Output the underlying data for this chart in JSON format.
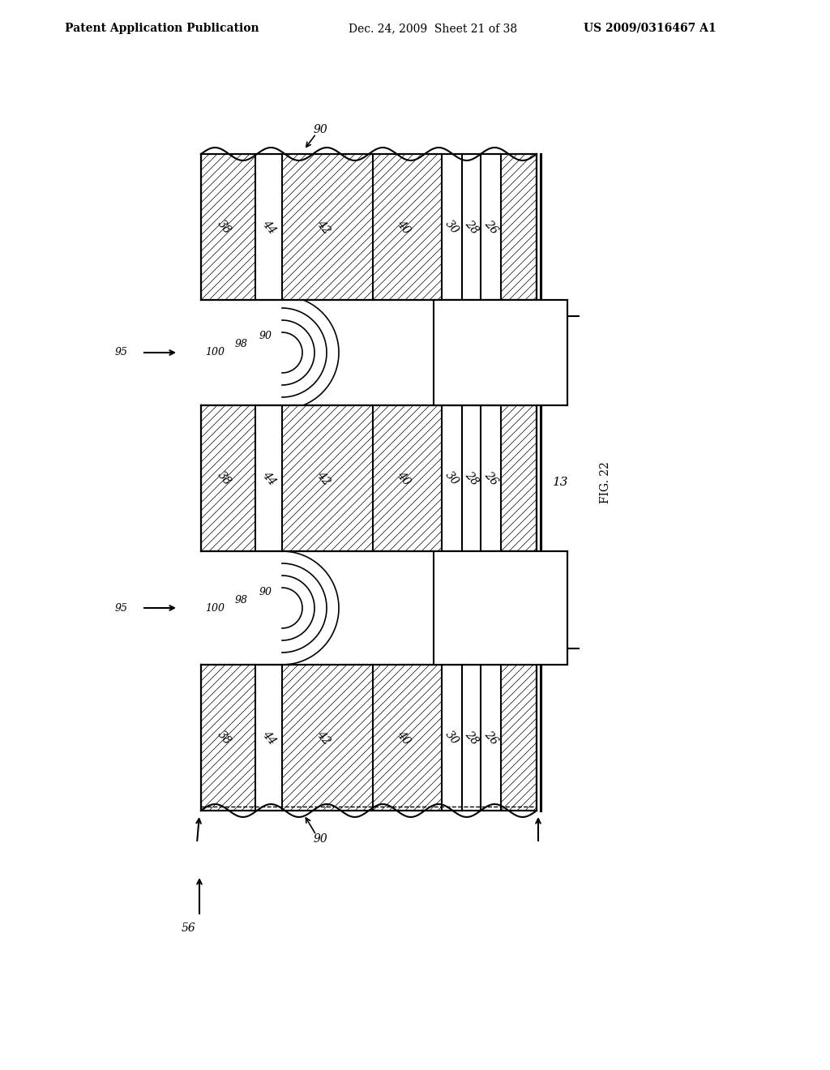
{
  "title_left": "Patent Application Publication",
  "title_mid": "Dec. 24, 2009  Sheet 21 of 38",
  "title_right": "US 2009/0316467 A1",
  "bg_color": "#ffffff",
  "line_color": "#000000",
  "hatch_color": "#000000",
  "label_color": "#000000"
}
